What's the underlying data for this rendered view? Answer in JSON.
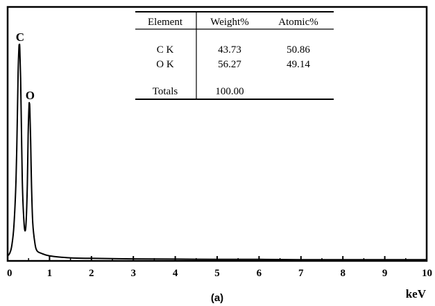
{
  "chart_data": {
    "type": "line",
    "title": "",
    "xlabel": "keV",
    "ylabel": "",
    "xlim": [
      0,
      10
    ],
    "ylim": [
      0,
      1
    ],
    "grid": false,
    "x_ticks": [
      "0",
      "1",
      "2",
      "3",
      "4",
      "5",
      "6",
      "7",
      "8",
      "9",
      "10"
    ],
    "peaks": [
      {
        "label": "C",
        "energy_kev": 0.28,
        "height": 0.85
      },
      {
        "label": "O",
        "energy_kev": 0.52,
        "height": 0.62
      }
    ],
    "series": [
      {
        "x": [
          0,
          0.05,
          0.1,
          0.15,
          0.2,
          0.23,
          0.25,
          0.27,
          0.28,
          0.29,
          0.31,
          0.33,
          0.35,
          0.38,
          0.41,
          0.44,
          0.47,
          0.49,
          0.51,
          0.52,
          0.53,
          0.55,
          0.57,
          0.6,
          0.65,
          0.7,
          0.8,
          1.0,
          1.5,
          2.0,
          3.0,
          4.0,
          5.0,
          6.0,
          7.0,
          8.0,
          9.0,
          10.0
        ],
        "y": [
          0.02,
          0.03,
          0.06,
          0.14,
          0.32,
          0.55,
          0.74,
          0.84,
          0.85,
          0.84,
          0.72,
          0.52,
          0.32,
          0.18,
          0.12,
          0.15,
          0.3,
          0.5,
          0.61,
          0.62,
          0.6,
          0.47,
          0.3,
          0.15,
          0.07,
          0.04,
          0.03,
          0.02,
          0.012,
          0.01,
          0.008,
          0.007,
          0.006,
          0.006,
          0.005,
          0.005,
          0.005,
          0.005
        ]
      }
    ],
    "inset_table": {
      "headers": [
        "Element",
        "Weight%",
        "Atomic%"
      ],
      "rows": [
        [
          "C K",
          "43.73",
          "50.86"
        ],
        [
          "O K",
          "56.27",
          "49.14"
        ]
      ],
      "totals": [
        "Totals",
        "100.00"
      ]
    },
    "panel_label": "(a)"
  }
}
